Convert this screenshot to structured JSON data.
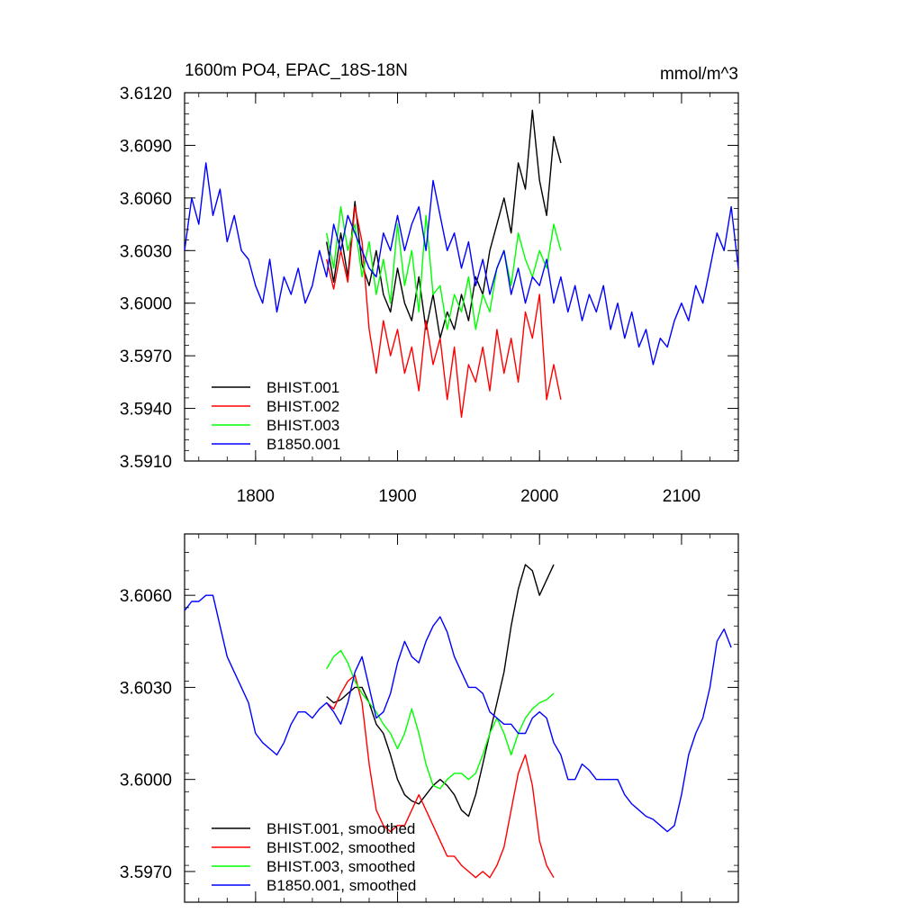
{
  "chart_data": [
    {
      "type": "line",
      "title": "1600m PO4, EPAC_18S-18N",
      "units": "mmol/m^3",
      "xlim": [
        1750,
        2140
      ],
      "ylim": [
        3.591,
        3.612
      ],
      "xticks": [
        1800,
        1900,
        2000,
        2100
      ],
      "xtick_labels": [
        "1800",
        "1900",
        "2000",
        "2100"
      ],
      "yticks": [
        3.591,
        3.594,
        3.597,
        3.6,
        3.603,
        3.606,
        3.609,
        3.612
      ],
      "ytick_labels": [
        "3.5910",
        "3.5940",
        "3.5970",
        "3.6000",
        "3.6030",
        "3.6060",
        "3.6090",
        "3.6120"
      ],
      "legend_position": "lower-left",
      "series": [
        {
          "name": "BHIST.001",
          "color": "#000000",
          "x": [
            1850,
            1855,
            1860,
            1865,
            1870,
            1875,
            1880,
            1885,
            1890,
            1895,
            1900,
            1905,
            1910,
            1915,
            1920,
            1925,
            1930,
            1935,
            1940,
            1945,
            1950,
            1955,
            1960,
            1965,
            1970,
            1975,
            1980,
            1985,
            1990,
            1995,
            2000,
            2005,
            2010,
            2015
          ],
          "y": [
            3.6035,
            3.6012,
            3.604,
            3.6015,
            3.6058,
            3.6022,
            3.601,
            3.603,
            3.6005,
            3.5995,
            3.602,
            3.6,
            3.599,
            3.6015,
            3.5985,
            3.6005,
            3.598,
            3.5995,
            3.5985,
            3.6005,
            3.599,
            3.6015,
            3.6005,
            3.603,
            3.6045,
            3.606,
            3.604,
            3.608,
            3.6065,
            3.611,
            3.607,
            3.605,
            3.6095,
            3.608
          ]
        },
        {
          "name": "BHIST.002",
          "color": "#ff0000",
          "x": [
            1850,
            1855,
            1860,
            1865,
            1870,
            1875,
            1880,
            1885,
            1890,
            1895,
            1900,
            1905,
            1910,
            1915,
            1920,
            1925,
            1930,
            1935,
            1940,
            1945,
            1950,
            1955,
            1960,
            1965,
            1970,
            1975,
            1980,
            1985,
            1990,
            1995,
            2000,
            2005,
            2010,
            2015
          ],
          "y": [
            3.6025,
            3.6008,
            3.603,
            3.6012,
            3.6055,
            3.6035,
            3.5985,
            3.596,
            3.599,
            3.597,
            3.5985,
            3.596,
            3.5975,
            3.595,
            3.599,
            3.5965,
            3.598,
            3.5945,
            3.5975,
            3.5935,
            3.5965,
            3.5955,
            3.5975,
            3.595,
            3.5985,
            3.596,
            3.598,
            3.5955,
            3.5995,
            3.598,
            3.6005,
            3.5945,
            3.5965,
            3.5945
          ]
        },
        {
          "name": "BHIST.003",
          "color": "#00ff00",
          "x": [
            1850,
            1855,
            1860,
            1865,
            1870,
            1875,
            1880,
            1885,
            1890,
            1895,
            1900,
            1905,
            1910,
            1915,
            1920,
            1925,
            1930,
            1935,
            1940,
            1945,
            1950,
            1955,
            1960,
            1965,
            1970,
            1975,
            1980,
            1985,
            1990,
            1995,
            2000,
            2005,
            2010,
            2015
          ],
          "y": [
            3.604,
            3.602,
            3.6055,
            3.603,
            3.6045,
            3.6015,
            3.6035,
            3.6005,
            3.6025,
            3.6,
            3.6045,
            3.601,
            3.603,
            3.5995,
            3.605,
            3.6005,
            3.601,
            3.5985,
            3.6005,
            3.5995,
            3.6015,
            3.5985,
            3.6005,
            3.5995,
            3.602,
            3.603,
            3.601,
            3.604,
            3.6025,
            3.6015,
            3.603,
            3.602,
            3.6045,
            3.603
          ]
        },
        {
          "name": "B1850.001",
          "color": "#0000ff",
          "x": [
            1750,
            1755,
            1760,
            1765,
            1770,
            1775,
            1780,
            1785,
            1790,
            1795,
            1800,
            1805,
            1810,
            1815,
            1820,
            1825,
            1830,
            1835,
            1840,
            1845,
            1850,
            1855,
            1860,
            1865,
            1870,
            1875,
            1880,
            1885,
            1890,
            1895,
            1900,
            1905,
            1910,
            1915,
            1920,
            1925,
            1930,
            1935,
            1940,
            1945,
            1950,
            1955,
            1960,
            1965,
            1970,
            1975,
            1980,
            1985,
            1990,
            1995,
            2000,
            2005,
            2010,
            2015,
            2020,
            2025,
            2030,
            2035,
            2040,
            2045,
            2050,
            2055,
            2060,
            2065,
            2070,
            2075,
            2080,
            2085,
            2090,
            2095,
            2100,
            2105,
            2110,
            2115,
            2120,
            2125,
            2130,
            2135,
            2140
          ],
          "y": [
            3.603,
            3.606,
            3.6045,
            3.608,
            3.605,
            3.6065,
            3.6035,
            3.605,
            3.603,
            3.6025,
            3.601,
            3.6,
            3.6025,
            3.5995,
            3.6015,
            3.6005,
            3.602,
            3.6,
            3.601,
            3.603,
            3.6015,
            3.6045,
            3.603,
            3.605,
            3.604,
            3.603,
            3.602,
            3.6015,
            3.604,
            3.603,
            3.605,
            3.603,
            3.6045,
            3.6055,
            3.603,
            3.607,
            3.605,
            3.603,
            3.604,
            3.602,
            3.6035,
            3.601,
            3.6025,
            3.6005,
            3.602,
            3.603,
            3.6005,
            3.602,
            3.6,
            3.6015,
            3.601,
            3.6025,
            3.6,
            3.6015,
            3.5995,
            3.601,
            3.599,
            3.6005,
            3.5995,
            3.601,
            3.5985,
            3.6,
            3.598,
            3.5995,
            3.5975,
            3.5985,
            3.5965,
            3.598,
            3.5975,
            3.599,
            3.6,
            3.599,
            3.601,
            3.6,
            3.602,
            3.604,
            3.603,
            3.6055,
            3.602
          ]
        }
      ]
    },
    {
      "type": "line",
      "xlim": [
        1750,
        2140
      ],
      "ylim": [
        3.596,
        3.608
      ],
      "xticks": [
        1800,
        1900,
        2000,
        2100
      ],
      "yticks": [
        3.597,
        3.6,
        3.603,
        3.606
      ],
      "ytick_labels": [
        "3.5970",
        "3.6000",
        "3.6030",
        "3.6060"
      ],
      "legend_position": "lower-left",
      "series": [
        {
          "name": "BHIST.001, smoothed",
          "color": "#000000",
          "x": [
            1850,
            1855,
            1860,
            1865,
            1870,
            1875,
            1880,
            1885,
            1890,
            1895,
            1900,
            1905,
            1910,
            1915,
            1920,
            1925,
            1930,
            1935,
            1940,
            1945,
            1950,
            1955,
            1960,
            1965,
            1970,
            1975,
            1980,
            1985,
            1990,
            1995,
            2000,
            2005,
            2010
          ],
          "y": [
            3.6027,
            3.6025,
            3.6026,
            3.6028,
            3.603,
            3.603,
            3.6025,
            3.6018,
            3.6015,
            3.6008,
            3.6,
            3.5995,
            3.5993,
            3.5992,
            3.5995,
            3.5998,
            3.6,
            3.5998,
            3.5995,
            3.599,
            3.5988,
            3.5995,
            3.6005,
            3.6015,
            3.6025,
            3.6035,
            3.605,
            3.6062,
            3.607,
            3.6068,
            3.606,
            3.6065,
            3.607
          ]
        },
        {
          "name": "BHIST.002, smoothed",
          "color": "#ff0000",
          "x": [
            1850,
            1855,
            1860,
            1865,
            1870,
            1875,
            1880,
            1885,
            1890,
            1895,
            1900,
            1905,
            1910,
            1915,
            1920,
            1925,
            1930,
            1935,
            1940,
            1945,
            1950,
            1955,
            1960,
            1965,
            1970,
            1975,
            1980,
            1985,
            1990,
            1995,
            2000,
            2005,
            2010
          ],
          "y": [
            3.6025,
            3.6023,
            3.6028,
            3.6032,
            3.6034,
            3.6025,
            3.6005,
            3.599,
            3.5985,
            3.5983,
            3.5985,
            3.5985,
            3.599,
            3.5995,
            3.599,
            3.5985,
            3.598,
            3.5975,
            3.5975,
            3.5972,
            3.597,
            3.5968,
            3.597,
            3.5968,
            3.5972,
            3.5978,
            3.599,
            3.6002,
            3.6008,
            3.5998,
            3.598,
            3.5972,
            3.5968
          ]
        },
        {
          "name": "BHIST.003, smoothed",
          "color": "#00ff00",
          "x": [
            1850,
            1855,
            1860,
            1865,
            1870,
            1875,
            1880,
            1885,
            1890,
            1895,
            1900,
            1905,
            1910,
            1915,
            1920,
            1925,
            1930,
            1935,
            1940,
            1945,
            1950,
            1955,
            1960,
            1965,
            1970,
            1975,
            1980,
            1985,
            1990,
            1995,
            2000,
            2005,
            2010
          ],
          "y": [
            3.6036,
            3.604,
            3.6042,
            3.6038,
            3.6032,
            3.6028,
            3.6025,
            3.6022,
            3.6018,
            3.6015,
            3.601,
            3.6015,
            3.6023,
            3.6015,
            3.6005,
            3.5998,
            3.5997,
            3.6,
            3.6002,
            3.6002,
            3.6,
            3.6002,
            3.6008,
            3.6015,
            3.602,
            3.6015,
            3.6008,
            3.6015,
            3.602,
            3.6023,
            3.6025,
            3.6026,
            3.6028
          ]
        },
        {
          "name": "B1850.001, smoothed",
          "color": "#0000ff",
          "x": [
            1750,
            1755,
            1760,
            1765,
            1770,
            1775,
            1780,
            1785,
            1790,
            1795,
            1800,
            1805,
            1810,
            1815,
            1820,
            1825,
            1830,
            1835,
            1840,
            1845,
            1850,
            1855,
            1860,
            1865,
            1870,
            1875,
            1880,
            1885,
            1890,
            1895,
            1900,
            1905,
            1910,
            1915,
            1920,
            1925,
            1930,
            1935,
            1940,
            1945,
            1950,
            1955,
            1960,
            1965,
            1970,
            1975,
            1980,
            1985,
            1990,
            1995,
            2000,
            2005,
            2010,
            2015,
            2020,
            2025,
            2030,
            2035,
            2040,
            2045,
            2050,
            2055,
            2060,
            2065,
            2070,
            2075,
            2080,
            2085,
            2090,
            2095,
            2100,
            2105,
            2110,
            2115,
            2120,
            2125,
            2130,
            2135
          ],
          "y": [
            3.6055,
            3.6058,
            3.6058,
            3.606,
            3.606,
            3.605,
            3.604,
            3.6035,
            3.603,
            3.6025,
            3.6015,
            3.6012,
            3.601,
            3.6008,
            3.6012,
            3.6018,
            3.6022,
            3.6022,
            3.602,
            3.6023,
            3.6025,
            3.6022,
            3.6018,
            3.6025,
            3.6035,
            3.604,
            3.603,
            3.602,
            3.6022,
            3.6028,
            3.6038,
            3.6045,
            3.604,
            3.6038,
            3.6045,
            3.605,
            3.6053,
            3.6048,
            3.604,
            3.6035,
            3.603,
            3.603,
            3.6028,
            3.6022,
            3.602,
            3.6018,
            3.6018,
            3.6015,
            3.6015,
            3.602,
            3.6022,
            3.602,
            3.6012,
            3.6008,
            3.6,
            3.6,
            3.6005,
            3.6003,
            3.6,
            3.6,
            3.6,
            3.6,
            3.5995,
            3.5992,
            3.599,
            3.5988,
            3.5987,
            3.5985,
            3.5983,
            3.5985,
            3.5995,
            3.6008,
            3.6015,
            3.602,
            3.603,
            3.6045,
            3.6049,
            3.6043
          ]
        }
      ]
    }
  ]
}
